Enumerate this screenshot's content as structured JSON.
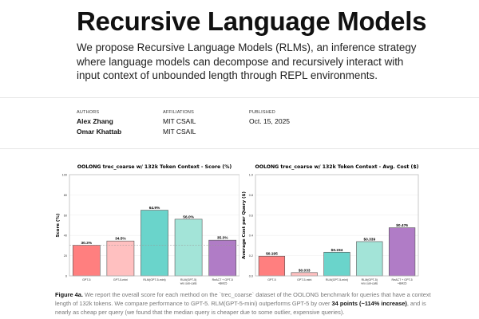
{
  "header": {
    "title": "Recursive Language Models",
    "lead": "We propose Recursive Language Models (RLMs), an inference strategy where language models can decompose and recursively interact with input context of unbounded length through REPL environments."
  },
  "meta": {
    "authors_label": "AUTHORS",
    "authors": [
      "Alex Zhang",
      "Omar Khattab"
    ],
    "affiliations_label": "AFFILIATIONS",
    "affiliations": [
      "MIT CSAIL",
      "MIT CSAIL"
    ],
    "published_label": "PUBLISHED",
    "published": "Oct. 15, 2025"
  },
  "chart_data": [
    {
      "type": "bar",
      "title": "OOLONG trec_coarse w/ 132k Token Context - Score (%)",
      "xlabel": "",
      "ylabel": "Score (%)",
      "ylim": [
        0,
        100
      ],
      "yticks": [
        0,
        20,
        40,
        60,
        80,
        100
      ],
      "categories": [
        "GPT-5",
        "GPT-5-mini",
        "RLM(GPT-5-mini)",
        "RLM(GPT-5) w/o sub-calls",
        "ReACT + GPT-5 +BM25"
      ],
      "values": [
        30.3,
        34.5,
        64.9,
        56.0,
        35.3
      ],
      "labels": [
        "30.3%",
        "34.5%",
        "64.9%",
        "56.0%",
        "35.3%"
      ],
      "colors": [
        "#ff7f7f",
        "#ffc0c0",
        "#6ad4cb",
        "#a3e4d8",
        "#b07cc6"
      ],
      "reference_line": 30.3,
      "grid": true
    },
    {
      "type": "bar",
      "title": "OOLONG trec_coarse w/ 132k Token Context - Avg. Cost ($)",
      "xlabel": "",
      "ylabel": "Average Cost per Query ($)",
      "ylim": [
        0,
        1.0
      ],
      "yticks": [
        0,
        0.2,
        0.4,
        0.6,
        0.8,
        1.0
      ],
      "categories": [
        "GPT-5",
        "GPT-5-mini",
        "RLM(GPT-5-mini)",
        "RLM(GPT-5) w/o sub-calls",
        "ReACT + GPT-5 +BM25"
      ],
      "values": [
        0.195,
        0.033,
        0.234,
        0.339,
        0.476
      ],
      "labels": [
        "$0.195",
        "$0.033",
        "$0.234",
        "$0.339",
        "$0.476"
      ],
      "colors": [
        "#ff7f7f",
        "#ffc0c0",
        "#6ad4cb",
        "#a3e4d8",
        "#b07cc6"
      ],
      "grid": true
    }
  ],
  "caption": {
    "label": "Figure 4a.",
    "text1": " We report the overall score for each method on the `trec_coarse` dataset of the OOLONG benchmark for queries that have a context length of 132k tokens. We compare performance to GPT-5. RLM(GPT-5-mini) outperforms GPT-5 by over ",
    "bold": "34 points (~114% increase)",
    "text2": ", and is nearly as cheap per query (we found that the median query is cheaper due to some outlier, expensive queries)."
  }
}
